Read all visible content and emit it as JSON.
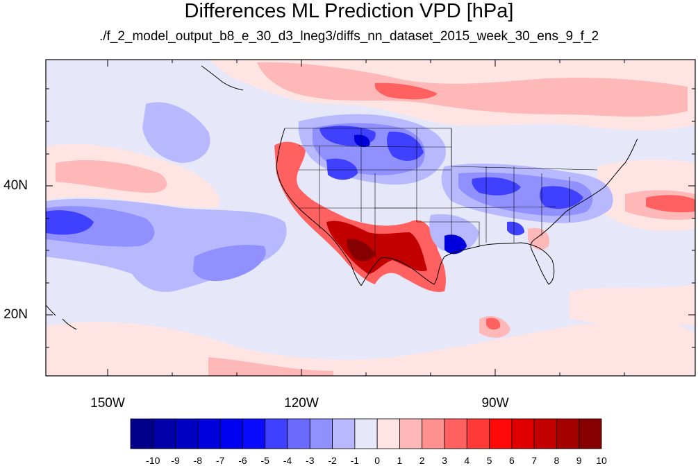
{
  "title": "Differences ML Prediction VPD [hPa]",
  "subtitle": "./f_2_model_output_b8_e_30_d3_lneg3/diffs_nn_dataset_2015_week_30_ens_9_f_2",
  "lon_labels": [
    "150W",
    "120W",
    "90W"
  ],
  "lat_labels": [
    "40N",
    "20N"
  ],
  "colorbar": {
    "labels": [
      "-10",
      "-9",
      "-8",
      "-7",
      "-6",
      "-5",
      "-4",
      "-3",
      "-2",
      "-1",
      "0",
      "1",
      "2",
      "3",
      "4",
      "5",
      "6",
      "7",
      "8",
      "9",
      "10"
    ],
    "colors": [
      "#00008a",
      "#0000a8",
      "#0000c2",
      "#0000dc",
      "#0000f0",
      "#0a0aff",
      "#4040ff",
      "#6a6aff",
      "#9090ff",
      "#b8b8ff",
      "#e6e8fa",
      "#ffe4e4",
      "#ffb8b8",
      "#ff9090",
      "#ff6060",
      "#ff3838",
      "#ff0808",
      "#e00000",
      "#c20000",
      "#a40000",
      "#860000"
    ]
  },
  "map_colors": {
    "background": "#e6e8fa",
    "light_red": "#ffe4e4",
    "pink": "#ffb8b8",
    "red": "#ff6060",
    "dark_red": "#c20000",
    "darkest_red": "#860000",
    "light_blue": "#b8b8ff",
    "mid_blue": "#9090ff",
    "blue": "#4040ff",
    "dark_blue": "#0000dc"
  }
}
